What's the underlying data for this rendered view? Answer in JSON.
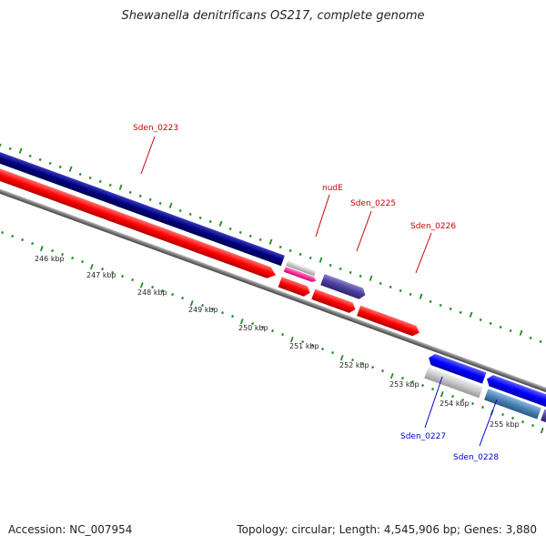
{
  "title": "Shewanella denitrificans OS217, complete genome",
  "footer": {
    "accession": "Accession: NC_007954",
    "stats": "Topology: circular; Length: 4,545,906 bp; Genes: 3,880"
  },
  "colors": {
    "tick": "#228b22",
    "forward_label": "#cc0000",
    "reverse_label": "#0000cc",
    "navy": "#000080",
    "red": "#ff0000",
    "blue": "#0000ff",
    "gray": "#c8c8c8",
    "pink": "#ff3399",
    "slate": "#4b3f9a",
    "steel": "#4a82b4",
    "backbone": "#777777"
  },
  "scale_labels": [
    "246 kbp",
    "247 kbp",
    "248 kbp",
    "249 kbp",
    "250 kbp",
    "251 kbp",
    "252 kbp",
    "253 kbp",
    "254 kbp",
    "255 kbp"
  ],
  "gene_labels": [
    {
      "text": "Sden_0223",
      "strand": "forward"
    },
    {
      "text": "nudE",
      "strand": "forward"
    },
    {
      "text": "Sden_0225",
      "strand": "forward"
    },
    {
      "text": "Sden_0226",
      "strand": "forward"
    },
    {
      "text": "Sden_0227",
      "strand": "reverse"
    },
    {
      "text": "Sden_0228",
      "strand": "reverse"
    }
  ]
}
